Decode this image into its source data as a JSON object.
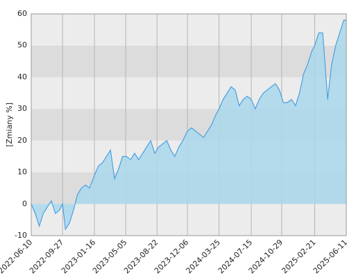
{
  "chart_data": {
    "type": "area",
    "y_label": "[Zmiany %]",
    "x": [
      "2022-06-10",
      "2022-06-24",
      "2022-07-08",
      "2022-07-22",
      "2022-08-05",
      "2022-08-19",
      "2022-09-02",
      "2022-09-16",
      "2022-09-27",
      "2022-10-07",
      "2022-10-21",
      "2022-11-04",
      "2022-11-18",
      "2022-12-02",
      "2022-12-16",
      "2022-12-30",
      "2023-01-16",
      "2023-01-30",
      "2023-02-13",
      "2023-02-27",
      "2023-03-13",
      "2023-03-27",
      "2023-04-10",
      "2023-04-24",
      "2023-05-08",
      "2023-05-22",
      "2023-06-05",
      "2023-06-19",
      "2023-07-03",
      "2023-07-17",
      "2023-07-31",
      "2023-08-14",
      "2023-08-28",
      "2023-09-11",
      "2023-09-25",
      "2023-10-09",
      "2023-10-23",
      "2023-11-06",
      "2023-11-20",
      "2023-12-06",
      "2023-12-20",
      "2024-01-03",
      "2024-01-17",
      "2024-01-31",
      "2024-02-14",
      "2024-02-28",
      "2024-03-13",
      "2024-03-25",
      "2024-04-08",
      "2024-04-22",
      "2024-05-06",
      "2024-05-20",
      "2024-06-03",
      "2024-06-17",
      "2024-07-01",
      "2024-07-15",
      "2024-07-29",
      "2024-08-12",
      "2024-08-26",
      "2024-09-09",
      "2024-09-23",
      "2024-10-07",
      "2024-10-21",
      "2024-11-04",
      "2024-11-18",
      "2024-12-02",
      "2024-12-16",
      "2024-12-30",
      "2025-01-13",
      "2025-01-27",
      "2025-02-10",
      "2025-02-21",
      "2025-03-07",
      "2025-03-21",
      "2025-04-07",
      "2025-04-21",
      "2025-05-05",
      "2025-05-19",
      "2025-06-02",
      "2025-06-11"
    ],
    "series": [
      {
        "color": "#4a9fe0",
        "fill": "#a9d8ec",
        "values": [
          0,
          -3,
          -7,
          -3,
          -1,
          1,
          -3,
          -2,
          0,
          -8,
          -6,
          -2,
          3,
          5,
          6,
          5,
          9,
          12,
          13,
          15,
          17,
          8,
          11,
          15,
          15,
          14,
          16,
          14,
          16,
          18,
          20,
          16,
          18,
          19,
          20,
          17,
          15,
          18,
          20,
          23,
          24,
          23,
          22,
          21,
          23,
          25,
          28,
          30,
          33,
          35,
          37,
          36,
          31,
          33,
          34,
          33,
          30,
          33,
          35,
          36,
          37,
          38,
          36,
          32,
          32,
          33,
          31,
          35,
          41,
          44,
          48,
          50,
          54,
          54,
          33,
          44,
          50,
          54,
          58,
          58
        ]
      }
    ],
    "xlim": [
      "2022-06-10",
      "2025-06-11"
    ],
    "xticks": [
      "2022-06-10",
      "2022-09-27",
      "2023-01-16",
      "2023-05-05",
      "2023-08-22",
      "2023-12-06",
      "2024-03-25",
      "2024-07-15",
      "2024-10-29",
      "2025-02-21",
      "2025-06-11"
    ],
    "ylim": [
      -10,
      60
    ],
    "yticks": [
      -10,
      0,
      10,
      20,
      30,
      40,
      50,
      60
    ],
    "band_colors": [
      "#ececec",
      "#dcdcdc"
    ],
    "grid": true
  }
}
